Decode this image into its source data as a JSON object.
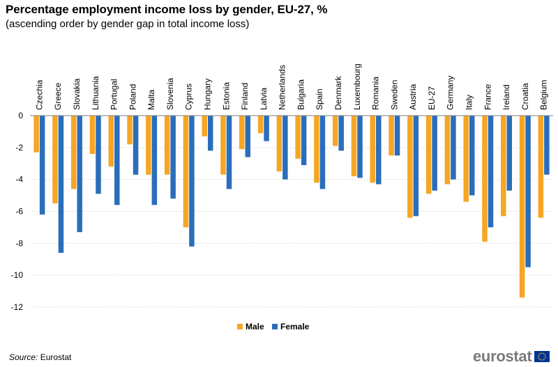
{
  "title": "Percentage employment income loss by gender, EU-27, %",
  "subtitle": "(ascending order by gender gap in total income loss)",
  "source_label": "Source:",
  "source_value": "Eurostat",
  "logo_text": "eurostat",
  "colors": {
    "male": "#f5a623",
    "female": "#2a6ebb",
    "grid": "#c8c8c8",
    "axis": "#7f7f7f"
  },
  "chart_data": {
    "type": "bar",
    "categories": [
      "Czechia",
      "Greece",
      "Slovakia",
      "Lithuania",
      "Portugal",
      "Poland",
      "Malta",
      "Slovenia",
      "Cyprus",
      "Hungary",
      "Estonia",
      "Finland",
      "Latvia",
      "Netherlands",
      "Bulgaria",
      "Spain",
      "Denmark",
      "Luxembourg",
      "Romania",
      "Sweden",
      "Austria",
      "EU-27",
      "Germany",
      "Italy",
      "France",
      "Ireland",
      "Croatia",
      "Belgium"
    ],
    "series": [
      {
        "name": "Male",
        "values": [
          -2.3,
          -5.5,
          -4.6,
          -2.4,
          -3.2,
          -1.8,
          -3.7,
          -3.7,
          -7.0,
          -1.3,
          -3.7,
          -2.1,
          -1.1,
          -3.5,
          -2.7,
          -4.2,
          -1.9,
          -3.8,
          -4.2,
          -2.5,
          -6.4,
          -4.9,
          -4.3,
          -5.4,
          -7.9,
          -6.3,
          -11.4,
          -6.4
        ]
      },
      {
        "name": "Female",
        "values": [
          -6.2,
          -8.6,
          -7.3,
          -4.9,
          -5.6,
          -3.7,
          -5.6,
          -5.2,
          -8.2,
          -2.2,
          -4.6,
          -2.6,
          -1.6,
          -4.0,
          -3.1,
          -4.6,
          -2.2,
          -3.9,
          -4.3,
          -2.5,
          -6.3,
          -4.7,
          -4.0,
          -5.0,
          -7.0,
          -4.7,
          -9.5,
          -3.7
        ]
      }
    ],
    "ylim": [
      -12,
      0
    ],
    "yticks": [
      0,
      -2,
      -4,
      -6,
      -8,
      -10,
      -12
    ],
    "grid": true,
    "legend_position": "bottom-center"
  }
}
